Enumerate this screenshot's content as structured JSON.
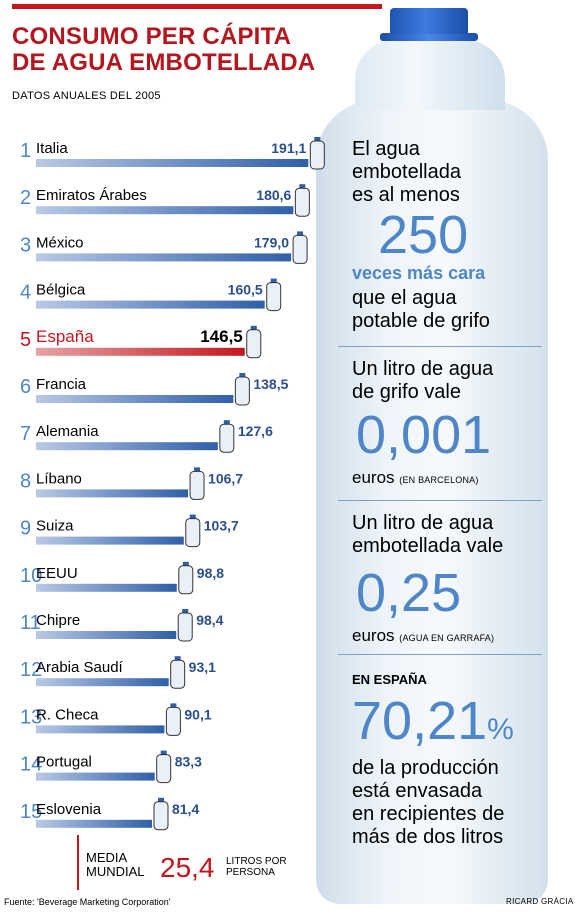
{
  "title_line1": "CONSUMO PER CÁPITA",
  "title_line2": "DE AGUA EMBOTELLADA",
  "subtitle": "DATOS ANUALES DEL 2005",
  "chart_data": {
    "type": "bar",
    "orientation": "horizontal",
    "unit": "LITROS POR PERSONA",
    "categories": [
      "Italia",
      "Emiratos Árabes",
      "México",
      "Bélgica",
      "España",
      "Francia",
      "Alemania",
      "Líbano",
      "Suiza",
      "EEUU",
      "Chipre",
      "Arabia Saudí",
      "R. Checa",
      "Portugal",
      "Eslovenia"
    ],
    "ranks": [
      "1",
      "2",
      "3",
      "4",
      "5",
      "6",
      "7",
      "8",
      "9",
      "10",
      "11",
      "12",
      "13",
      "14",
      "15"
    ],
    "values": [
      191.1,
      180.6,
      179.0,
      160.5,
      146.5,
      138.5,
      127.6,
      106.7,
      103.7,
      98.8,
      98.4,
      93.1,
      90.1,
      83.3,
      81.4
    ],
    "value_labels": [
      "191,1",
      "180,6",
      "179,0",
      "160,5",
      "146,5",
      "138,5",
      "127,6",
      "106,7",
      "103,7",
      "98,8",
      "98,4",
      "93,1",
      "90,1",
      "83,3",
      "81,4"
    ],
    "highlight_index": 4,
    "colors": {
      "bar": "#2f5fa8",
      "highlight": "#c4161c",
      "label": "#2b4f8c"
    }
  },
  "media": {
    "label_line1": "MEDIA",
    "label_line2": "MUNDIAL",
    "value": "25,4",
    "unit_line1": "LITROS POR",
    "unit_line2": "PERSONA"
  },
  "panel1": {
    "line1": "El agua",
    "line2": "embotellada",
    "line3": "es al menos",
    "big": "250",
    "line4": "veces más cara",
    "line5": "que el agua",
    "line6": "potable de grifo"
  },
  "panel2": {
    "line1": "Un litro de agua",
    "line2": "de grifo vale",
    "big": "0,001",
    "unit": "euros",
    "note": "(EN BARCELONA)"
  },
  "panel3": {
    "line1": "Un litro de agua",
    "line2": "embotellada vale",
    "big": "0,25",
    "unit": "euros",
    "note": "(AGUA EN GARRAFA)"
  },
  "panel4": {
    "heading": "EN ESPAÑA",
    "big": "70,21",
    "pct": "%",
    "line1": "de la producción",
    "line2": "está envasada",
    "line3": "en recipientes de",
    "line4": "más de dos litros"
  },
  "footer": {
    "source": "Fuente: 'Beverage Marketing Corporation'",
    "credit": "RICARD GRÀCIA"
  }
}
